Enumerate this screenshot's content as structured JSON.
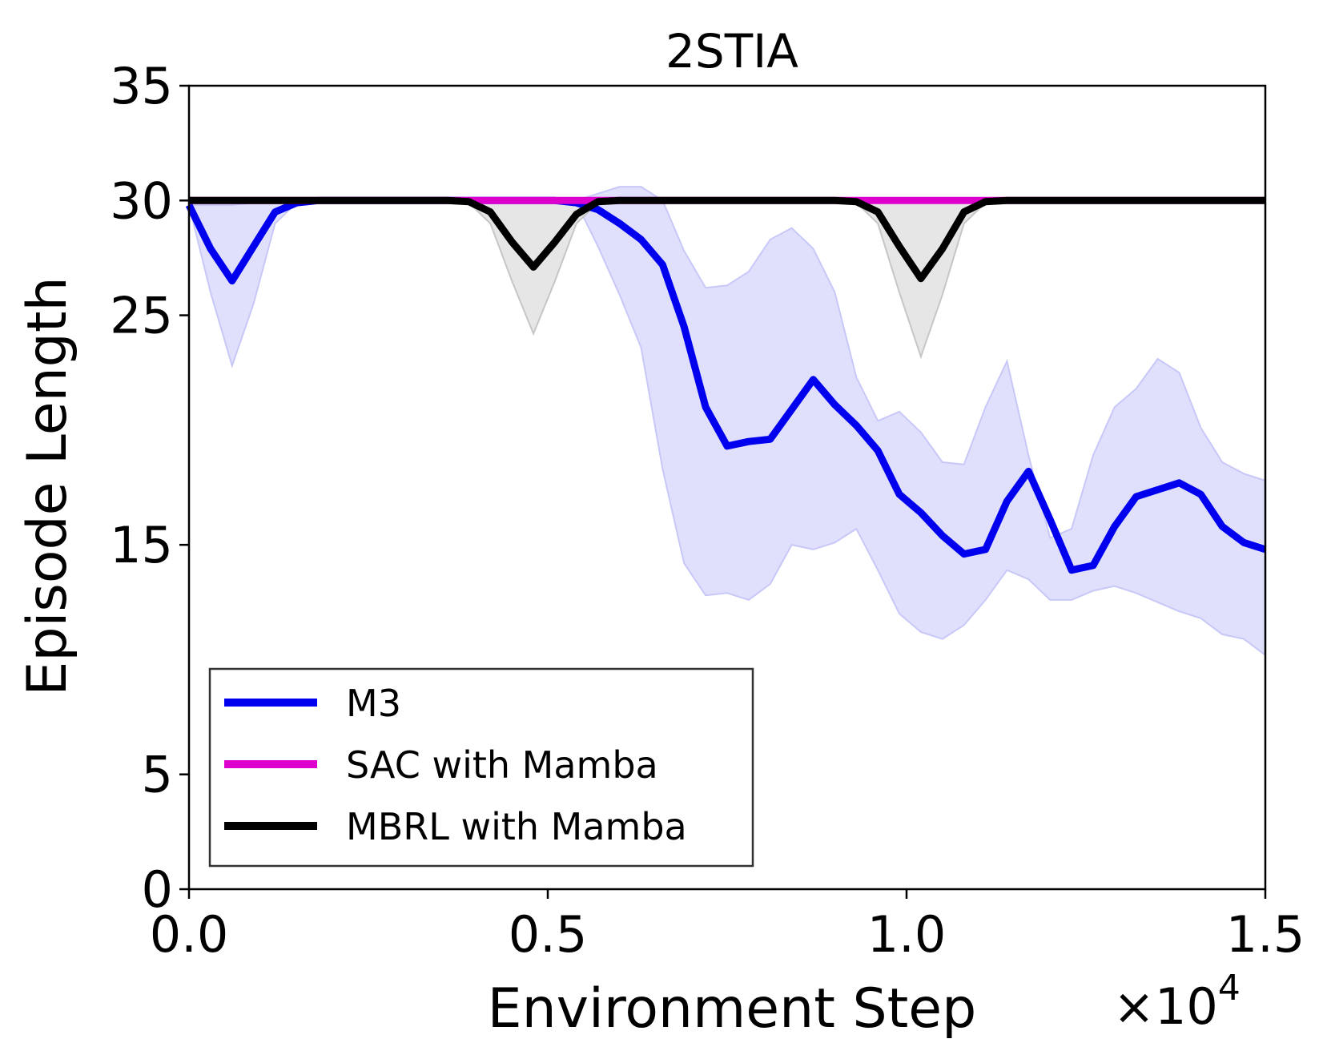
{
  "chart_data": {
    "type": "line",
    "title": "2STIA",
    "xlabel": "Environment Step",
    "ylabel": "Episode Length",
    "x_scale_label": "×10",
    "x_scale_exponent": "4",
    "xlim": [
      0,
      1.5
    ],
    "ylim": [
      0,
      35
    ],
    "xticks": [
      0.0,
      0.5,
      1.0,
      1.5
    ],
    "xtick_labels": [
      "0.0",
      "0.5",
      "1.0",
      "1.5"
    ],
    "yticks": [
      0,
      5,
      15,
      25,
      30,
      35
    ],
    "ytick_labels": [
      "0",
      "5",
      "15",
      "25",
      "30",
      "35"
    ],
    "legend_position": "lower-left",
    "x": [
      0.0,
      0.03,
      0.06,
      0.09,
      0.12,
      0.15,
      0.18,
      0.21,
      0.24,
      0.27,
      0.3,
      0.33,
      0.36,
      0.39,
      0.42,
      0.45,
      0.48,
      0.51,
      0.54,
      0.57,
      0.6,
      0.63,
      0.66,
      0.69,
      0.72,
      0.75,
      0.78,
      0.81,
      0.84,
      0.87,
      0.9,
      0.93,
      0.96,
      0.99,
      1.02,
      1.05,
      1.08,
      1.11,
      1.14,
      1.17,
      1.2,
      1.23,
      1.26,
      1.29,
      1.32,
      1.35,
      1.38,
      1.41,
      1.44,
      1.47,
      1.5
    ],
    "series": [
      {
        "name": "M3",
        "color": "#0000ee",
        "band_color": "#e0e0fc",
        "band_edge_color": "#c8c8f8",
        "values": [
          29.8,
          27.9,
          26.5,
          28.0,
          29.5,
          29.9,
          30,
          30,
          30,
          30,
          30,
          30,
          30,
          30,
          30,
          30,
          30,
          30,
          29.9,
          29.6,
          29.0,
          28.3,
          27.2,
          24.5,
          21.0,
          19.3,
          19.5,
          19.6,
          20.9,
          22.2,
          21.1,
          20.2,
          19.1,
          17.2,
          16.4,
          15.4,
          14.6,
          14.8,
          16.9,
          18.2,
          16.1,
          13.9,
          14.1,
          15.8,
          17.1,
          17.4,
          17.7,
          17.2,
          15.8,
          15.1,
          14.8
        ],
        "lower": [
          29.8,
          26.0,
          22.8,
          25.5,
          29.0,
          29.9,
          30,
          30,
          30,
          30,
          30,
          30,
          30,
          30,
          30,
          30,
          30,
          30,
          29.9,
          28.0,
          25.9,
          23.6,
          18.3,
          14.2,
          12.8,
          12.9,
          12.6,
          13.3,
          15.0,
          14.8,
          15.1,
          15.7,
          13.9,
          12.0,
          11.2,
          10.9,
          11.5,
          12.6,
          13.9,
          13.5,
          12.6,
          12.6,
          13.0,
          13.2,
          12.9,
          12.5,
          12.1,
          11.8,
          11.1,
          10.9,
          10.2
        ],
        "upper": [
          29.8,
          29.8,
          29.8,
          29.9,
          30,
          30,
          30,
          30,
          30,
          30,
          30,
          30,
          30,
          30,
          30,
          30,
          30,
          30,
          30,
          30.3,
          30.6,
          30.6,
          30.0,
          27.8,
          26.2,
          26.3,
          26.9,
          28.3,
          28.8,
          27.9,
          26.0,
          22.3,
          20.4,
          20.8,
          19.9,
          18.6,
          18.5,
          21.0,
          23.0,
          18.9,
          15.3,
          15.7,
          18.9,
          21.0,
          21.8,
          23.1,
          22.5,
          20.1,
          18.6,
          18.1,
          17.8
        ]
      },
      {
        "name": "SAC with Mamba",
        "color": "#dd00cc",
        "values": [
          30,
          30,
          30,
          30,
          30,
          30,
          30,
          30,
          30,
          30,
          30,
          30,
          30,
          30,
          30,
          30,
          30,
          30,
          30,
          30,
          30,
          30,
          30,
          30,
          30,
          30,
          30,
          30,
          30,
          30,
          30,
          30,
          30,
          30,
          30,
          30,
          30,
          30,
          30,
          30,
          30,
          30,
          30,
          30,
          30,
          30,
          30,
          30,
          30,
          30,
          30
        ]
      },
      {
        "name": "MBRL with Mamba",
        "color": "#000000",
        "band_color": "#e6e6e6",
        "band_edge_color": "#c6c6c6",
        "values": [
          30,
          30,
          30,
          30,
          30,
          30,
          30,
          30,
          30,
          30,
          30,
          30,
          30,
          29.95,
          29.5,
          28.2,
          27.1,
          28.2,
          29.4,
          29.95,
          30,
          30,
          30,
          30,
          30,
          30,
          30,
          30,
          30,
          30,
          30,
          29.95,
          29.5,
          28.0,
          26.6,
          27.9,
          29.5,
          29.95,
          30,
          30,
          30,
          30,
          30,
          30,
          30,
          30,
          30,
          30,
          30,
          30,
          30
        ],
        "lower": [
          30,
          30,
          30,
          30,
          30,
          30,
          30,
          30,
          30,
          30,
          30,
          30,
          30,
          29.9,
          29.0,
          26.5,
          24.2,
          26.5,
          29.0,
          29.9,
          30,
          30,
          30,
          30,
          30,
          30,
          30,
          30,
          30,
          30,
          30,
          29.9,
          29.0,
          26.0,
          23.2,
          25.9,
          29.0,
          29.9,
          30,
          30,
          30,
          30,
          30,
          30,
          30,
          30,
          30,
          30,
          30,
          30,
          30
        ],
        "upper": [
          30,
          30,
          30,
          30,
          30,
          30,
          30,
          30,
          30,
          30,
          30,
          30,
          30,
          30,
          30,
          30,
          30,
          30,
          30,
          30,
          30,
          30,
          30,
          30,
          30,
          30,
          30,
          30,
          30,
          30,
          30,
          30,
          30,
          30,
          30,
          30,
          30,
          30,
          30,
          30,
          30,
          30,
          30,
          30,
          30,
          30,
          30,
          30,
          30,
          30,
          30
        ]
      }
    ]
  }
}
